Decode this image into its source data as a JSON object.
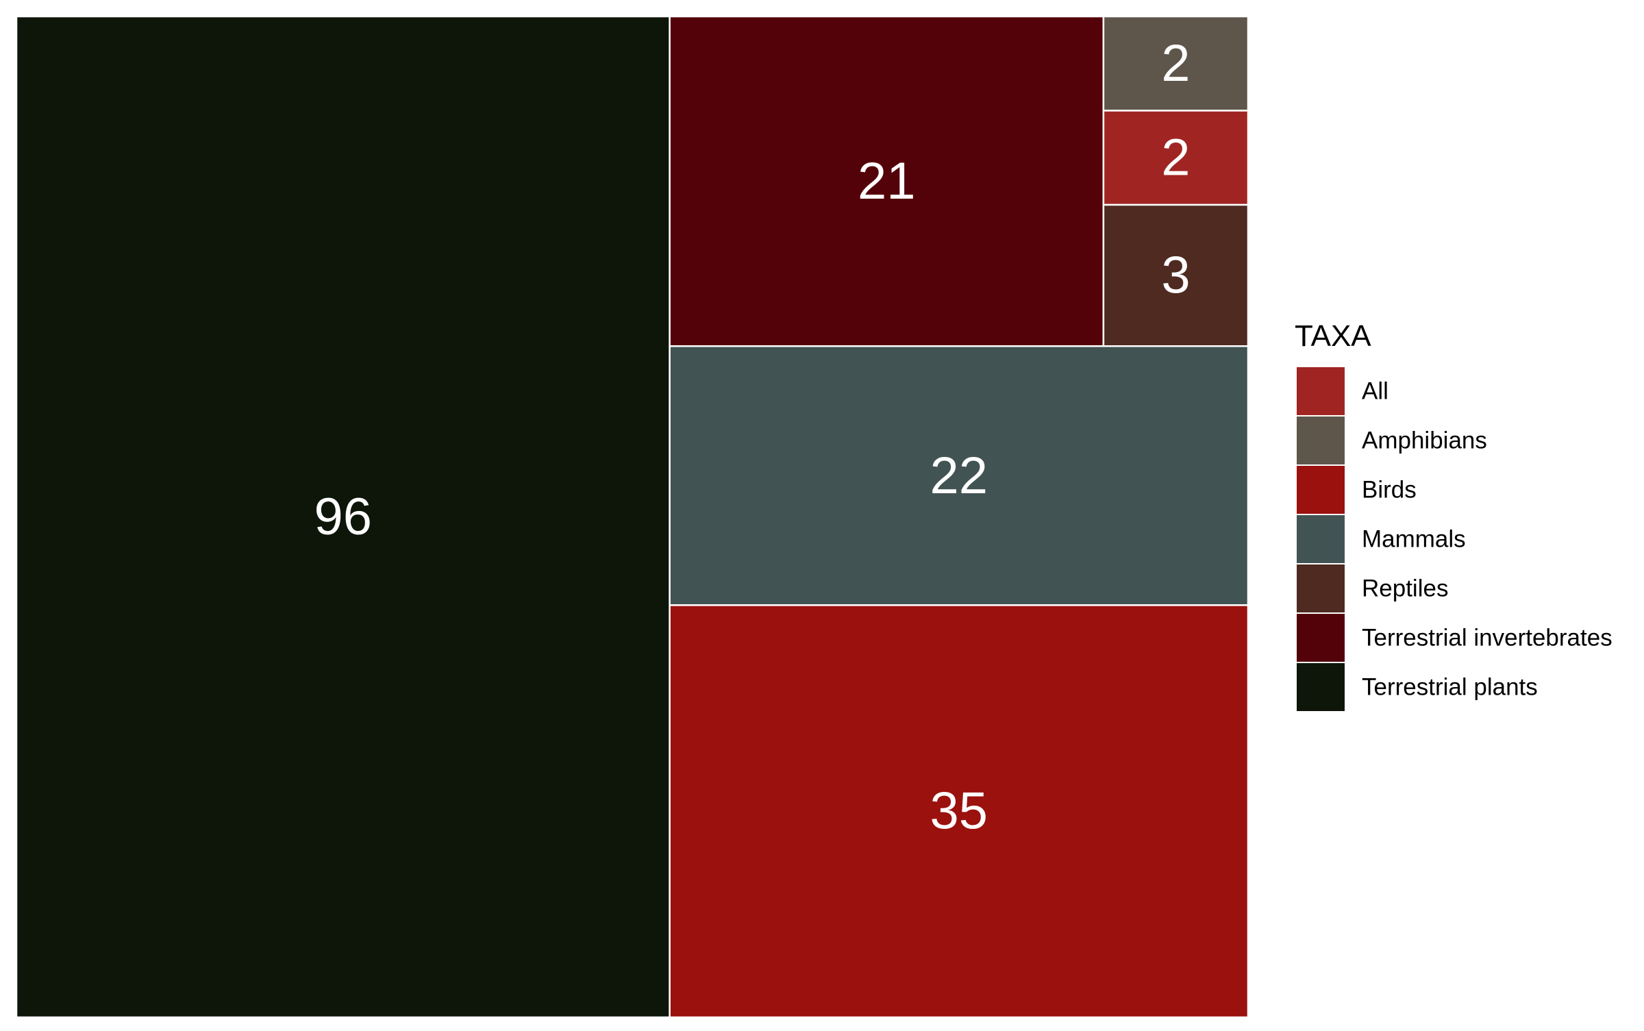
{
  "chart_data": {
    "type": "treemap",
    "title": "",
    "legend": {
      "title": "TAXA",
      "placement": "right",
      "entries": [
        {
          "label": "All",
          "color": "#a02522"
        },
        {
          "label": "Amphibians",
          "color": "#5e564a"
        },
        {
          "label": "Birds",
          "color": "#9a110e"
        },
        {
          "label": "Mammals",
          "color": "#425354"
        },
        {
          "label": "Reptiles",
          "color": "#4f2a21"
        },
        {
          "label": "Terrestrial invertebrates",
          "color": "#54020a"
        },
        {
          "label": "Terrestrial plants",
          "color": "#0d1609"
        }
      ]
    },
    "series": [
      {
        "name": "Terrestrial plants",
        "value": 96,
        "label": "96"
      },
      {
        "name": "Birds",
        "value": 35,
        "label": "35"
      },
      {
        "name": "Mammals",
        "value": 22,
        "label": "22"
      },
      {
        "name": "Terrestrial invertebrates",
        "value": 21,
        "label": "21"
      },
      {
        "name": "Reptiles",
        "value": 3,
        "label": "3"
      },
      {
        "name": "All",
        "value": 2,
        "label": "2"
      },
      {
        "name": "Amphibians",
        "value": 2,
        "label": "2"
      }
    ]
  }
}
